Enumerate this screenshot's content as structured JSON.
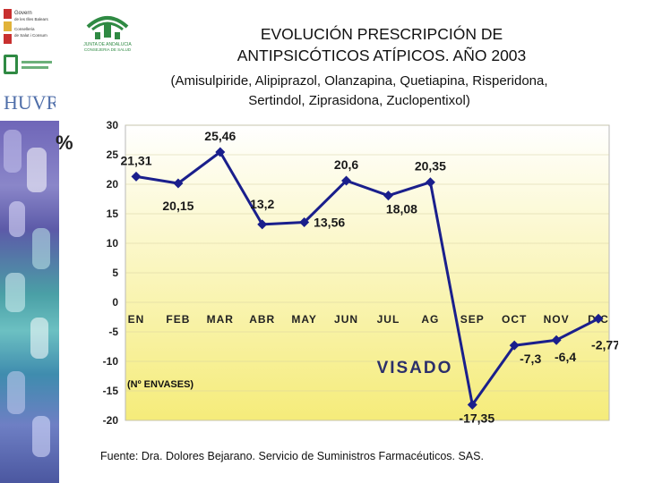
{
  "header": {
    "title_line1": "EVOLUCIÓN PRESCRIPCIÓN DE",
    "title_line2": "ANTIPSICÓTICOS ATÍPICOS. AÑO 2003",
    "subtitle_line1": "(Amisulpiride, Alipiprazol, Olanzapina, Quetiapina, Risperidona,",
    "subtitle_line2": "Sertindol, Ziprasidona, Zuclopentixol)"
  },
  "logos": {
    "govern": [
      "Govern",
      "de les Illes Balears",
      "Conselleria",
      "de Salut i Consum"
    ],
    "andalucia": "JUNTA DE ANDALUCIA",
    "consejeria": "CONSEJERIA DE SALUD",
    "huvr": "HUVR"
  },
  "chart_data": {
    "type": "line",
    "unit_label": "%",
    "categories": [
      "EN",
      "FEB",
      "MAR",
      "ABR",
      "MAY",
      "JUN",
      "JUL",
      "AG",
      "SEP",
      "OCT",
      "NOV",
      "DIC"
    ],
    "values": [
      21.31,
      20.15,
      25.46,
      13.2,
      13.56,
      20.6,
      18.08,
      20.35,
      -17.35,
      -7.3,
      -6.4,
      -2.77
    ],
    "value_labels": [
      "21,31",
      "20,15",
      "25,46",
      "13,2",
      "13,56",
      "20,6",
      "18,08",
      "20,35",
      "-17,35",
      "-7,3",
      "-6,4",
      "-2,77"
    ],
    "ylim": [
      -20,
      30
    ],
    "yticks": [
      30,
      25,
      20,
      15,
      10,
      5,
      0,
      -5,
      -10,
      -15,
      -20
    ],
    "annotations": [
      "VISADO",
      "(Nº ENVASES)"
    ],
    "line_color": "#1a1f8c",
    "background_top": "#ffffff",
    "background_bottom": "#f5ec7a"
  },
  "footer": {
    "source": "Fuente: Dra. Dolores Bejarano. Servicio de Suministros Farmacéuticos. SAS."
  }
}
